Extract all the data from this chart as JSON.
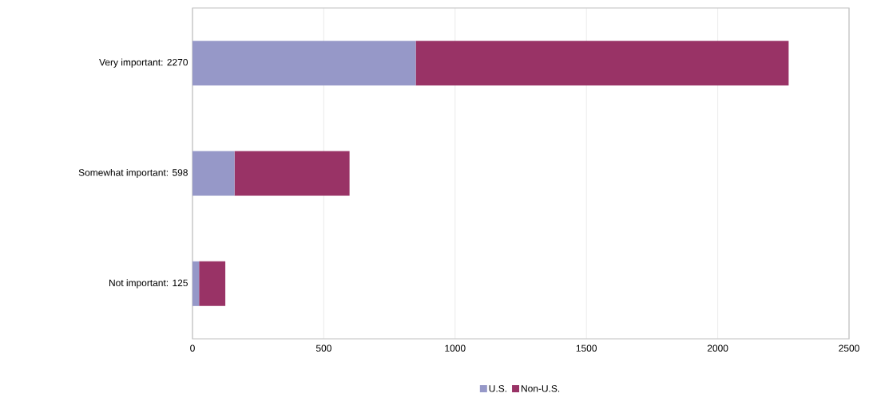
{
  "chart_data": {
    "type": "bar",
    "orientation": "horizontal",
    "stacked": true,
    "categories": [
      "Very important: 2270",
      "Somewhat important: 598",
      "Not important: 125"
    ],
    "series": [
      {
        "name": "U.S.",
        "color": "#9698c8",
        "values": [
          850,
          160,
          25
        ]
      },
      {
        "name": "Non-U.S.",
        "color": "#993366",
        "values": [
          1420,
          438,
          100
        ]
      }
    ],
    "xlim": [
      0,
      2500
    ],
    "xticks": [
      0,
      500,
      1000,
      1500,
      2000,
      2500
    ],
    "grid": "x",
    "legend": "bottom"
  }
}
